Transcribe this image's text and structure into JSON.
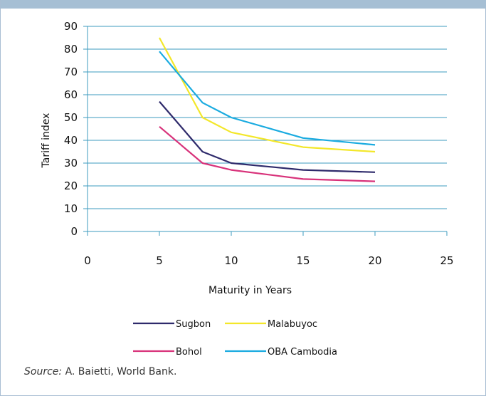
{
  "chart_data": {
    "type": "line",
    "xlabel": "Maturity in Years",
    "ylabel": "Tariff index",
    "xlim": [
      0,
      25
    ],
    "ylim": [
      0,
      90
    ],
    "x_ticks": [
      0,
      5,
      10,
      15,
      20,
      25
    ],
    "y_ticks": [
      0,
      10,
      20,
      30,
      40,
      50,
      60,
      70,
      80,
      90
    ],
    "grid": "horizontal",
    "legend_position": "bottom",
    "series": [
      {
        "name": "Sugbon",
        "color": "#2e2a6b",
        "x": [
          5,
          8,
          10,
          15,
          20
        ],
        "y": [
          57,
          35,
          30,
          27,
          26
        ]
      },
      {
        "name": "Malabuyoc",
        "color": "#f3e72a",
        "x": [
          5,
          8,
          10,
          15,
          20
        ],
        "y": [
          85,
          50,
          43.5,
          37,
          35
        ]
      },
      {
        "name": "Bohol",
        "color": "#d8327a",
        "x": [
          5,
          8,
          10,
          15,
          20
        ],
        "y": [
          46,
          30,
          27,
          23,
          22
        ]
      },
      {
        "name": "OBA Cambodia",
        "color": "#1aabe0",
        "x": [
          5,
          8,
          10,
          15,
          20
        ],
        "y": [
          79,
          56.5,
          50,
          41,
          38
        ]
      }
    ]
  },
  "source": {
    "label": "Source:",
    "text": "A. Baietti, World Bank."
  }
}
